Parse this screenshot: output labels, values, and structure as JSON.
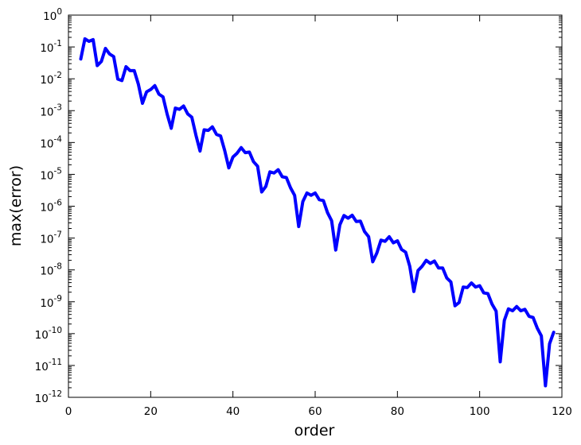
{
  "chart_data": {
    "type": "line",
    "title": "",
    "xlabel": "order",
    "ylabel": "max(error)",
    "xlim": [
      0,
      120
    ],
    "ylim": [
      1e-12,
      1
    ],
    "yscale": "log",
    "grid": false,
    "line_color": "#0000ff",
    "xticks": [
      0,
      20,
      40,
      60,
      80,
      100,
      120
    ],
    "yticks": [
      {
        "value": 1.0,
        "base": "10",
        "exp": "0"
      },
      {
        "value": 0.1,
        "base": "10",
        "exp": "-1"
      },
      {
        "value": 0.01,
        "base": "10",
        "exp": "-2"
      },
      {
        "value": 0.001,
        "base": "10",
        "exp": "-3"
      },
      {
        "value": 0.0001,
        "base": "10",
        "exp": "-4"
      },
      {
        "value": 1e-05,
        "base": "10",
        "exp": "-5"
      },
      {
        "value": 1e-06,
        "base": "10",
        "exp": "-6"
      },
      {
        "value": 1e-07,
        "base": "10",
        "exp": "-7"
      },
      {
        "value": 1e-08,
        "base": "10",
        "exp": "-8"
      },
      {
        "value": 1e-09,
        "base": "10",
        "exp": "-9"
      },
      {
        "value": 1e-10,
        "base": "10",
        "exp": "-10"
      },
      {
        "value": 1e-11,
        "base": "10",
        "exp": "-11"
      },
      {
        "value": 1e-12,
        "base": "10",
        "exp": "-12"
      }
    ],
    "series": [
      {
        "x": [
          3,
          4,
          5,
          6,
          7,
          8,
          9,
          10,
          11,
          12,
          13,
          14,
          15,
          16,
          17,
          18,
          19,
          20,
          21,
          22,
          23,
          24,
          25,
          26,
          27,
          28,
          29,
          30,
          31,
          32,
          33,
          34,
          35,
          36,
          37,
          38,
          39,
          40,
          41,
          42,
          43,
          44,
          45,
          46,
          47,
          48,
          49,
          50,
          51,
          52,
          53,
          54,
          55,
          56,
          57,
          58,
          59,
          60,
          61,
          62,
          63,
          64,
          65,
          66,
          67,
          68,
          69,
          70,
          71,
          72,
          73,
          74,
          75,
          76,
          77,
          78,
          79,
          80,
          81,
          82,
          83,
          84,
          85,
          86,
          87,
          88,
          89,
          90,
          91,
          92,
          93,
          94,
          95,
          96,
          97,
          98,
          99,
          100,
          101,
          102,
          103,
          104,
          105,
          106,
          107,
          108,
          109,
          110,
          111,
          112,
          113,
          114,
          115,
          116,
          117,
          118
        ],
        "y": [
          0.042,
          0.18,
          0.15,
          0.17,
          0.026,
          0.035,
          0.09,
          0.06,
          0.05,
          0.0098,
          0.0088,
          0.024,
          0.018,
          0.018,
          0.0068,
          0.0017,
          0.0039,
          0.0046,
          0.0061,
          0.0033,
          0.0027,
          0.00078,
          0.00028,
          0.0012,
          0.0011,
          0.0014,
          0.00079,
          0.00062,
          0.00017,
          5.4e-05,
          0.00025,
          0.00024,
          0.00031,
          0.00018,
          0.00016,
          5.6e-05,
          1.6e-05,
          3.5e-05,
          4.6e-05,
          6.9e-05,
          4.8e-05,
          5e-05,
          2.5e-05,
          1.8e-05,
          2.8e-06,
          4.2e-06,
          1.2e-05,
          1.1e-05,
          1.4e-05,
          8.4e-06,
          7.9e-06,
          3.8e-06,
          2.2e-06,
          2.3e-07,
          1.4e-06,
          2.6e-06,
          2.2e-06,
          2.6e-06,
          1.6e-06,
          1.5e-06,
          6.3e-07,
          3.5e-07,
          4.2e-08,
          2.6e-07,
          5.1e-07,
          4.2e-07,
          5.2e-07,
          3.3e-07,
          3.4e-07,
          1.6e-07,
          1.1e-07,
          1.8e-08,
          3.4e-08,
          8.6e-08,
          7.9e-08,
          1.1e-07,
          7.1e-08,
          8.2e-08,
          4.4e-08,
          3.6e-08,
          1.3e-08,
          2.1e-09,
          9.5e-09,
          1.3e-08,
          2e-08,
          1.6e-08,
          1.9e-08,
          1.15e-08,
          1.15e-08,
          5.6e-09,
          4.2e-09,
          7.5e-10,
          9.5e-10,
          2.9e-09,
          2.8e-09,
          3.9e-09,
          2.9e-09,
          3.2e-09,
          1.9e-09,
          1.8e-09,
          8.5e-10,
          5.1e-10,
          1.3e-11,
          2.6e-10,
          6e-10,
          5.2e-10,
          7.1e-10,
          5.2e-10,
          5.8e-10,
          3.5e-10,
          3.2e-10,
          1.5e-10,
          8.5e-11,
          2.3e-12,
          4.8e-11,
          1.1e-10
        ]
      }
    ]
  }
}
